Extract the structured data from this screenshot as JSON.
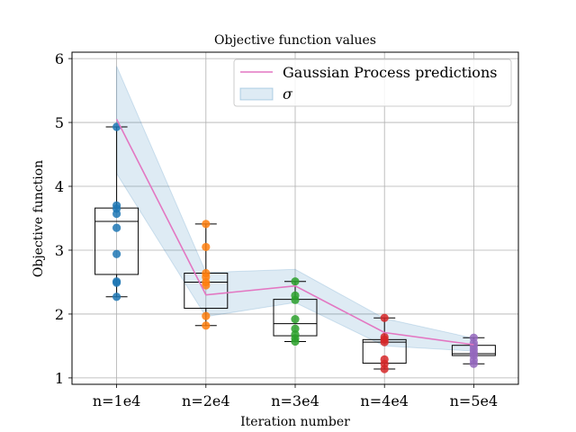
{
  "chart_data": {
    "type": "box",
    "title": "Objective function values",
    "xlabel": "Iteration number",
    "ylabel": "Objective function",
    "ylim": [
      0.9,
      6.1
    ],
    "yticks": [
      1,
      2,
      3,
      4,
      5,
      6
    ],
    "categories": [
      "n=1e4",
      "n=2e4",
      "n=3e4",
      "n=4e4",
      "n=5e4"
    ],
    "grid": true,
    "legend_position": "top-right",
    "legend": [
      {
        "label": "Gaussian Process predictions"
      },
      {
        "label": "σ"
      }
    ],
    "boxes": [
      {
        "category": "n=1e4",
        "whisker_low": 2.27,
        "q1": 2.62,
        "median": 3.45,
        "q3": 3.66,
        "whisker_high": 4.93
      },
      {
        "category": "n=2e4",
        "whisker_low": 1.82,
        "q1": 2.09,
        "median": 2.5,
        "q3": 2.64,
        "whisker_high": 3.41
      },
      {
        "category": "n=3e4",
        "whisker_low": 1.57,
        "q1": 1.66,
        "median": 1.85,
        "q3": 2.23,
        "whisker_high": 2.51
      },
      {
        "category": "n=4e4",
        "whisker_low": 1.14,
        "q1": 1.23,
        "median": 1.56,
        "q3": 1.6,
        "whisker_high": 1.94
      },
      {
        "category": "n=5e4",
        "whisker_low": 1.22,
        "q1": 1.35,
        "median": 1.38,
        "q3": 1.51,
        "whisker_high": 1.63
      }
    ],
    "points": [
      {
        "category": "n=1e4",
        "color": "#1f77b4",
        "values": [
          4.93,
          3.7,
          3.65,
          3.57,
          3.35,
          2.94,
          2.51,
          2.49,
          2.27
        ]
      },
      {
        "category": "n=2e4",
        "color": "#ff7f0e",
        "values": [
          3.41,
          3.05,
          2.64,
          2.58,
          2.5,
          2.45,
          1.97,
          1.82
        ]
      },
      {
        "category": "n=3e4",
        "color": "#2ca02c",
        "values": [
          2.51,
          2.29,
          2.22,
          1.92,
          1.77,
          1.68,
          1.62,
          1.57
        ]
      },
      {
        "category": "n=4e4",
        "color": "#d62728",
        "values": [
          1.94,
          1.64,
          1.6,
          1.56,
          1.29,
          1.22,
          1.14
        ]
      },
      {
        "category": "n=5e4",
        "color": "#9467bd",
        "values": [
          1.63,
          1.55,
          1.5,
          1.45,
          1.4,
          1.35,
          1.28,
          1.22
        ]
      }
    ],
    "gp_prediction": {
      "name": "Gaussian Process predictions",
      "color": "#e377c2",
      "values": [
        5.05,
        2.3,
        2.44,
        1.71,
        1.52
      ],
      "sigma_upper": [
        5.88,
        2.65,
        2.7,
        1.93,
        1.62
      ],
      "sigma_lower": [
        4.2,
        1.96,
        2.18,
        1.5,
        1.42
      ],
      "sigma_color": "#1f77b4"
    }
  }
}
